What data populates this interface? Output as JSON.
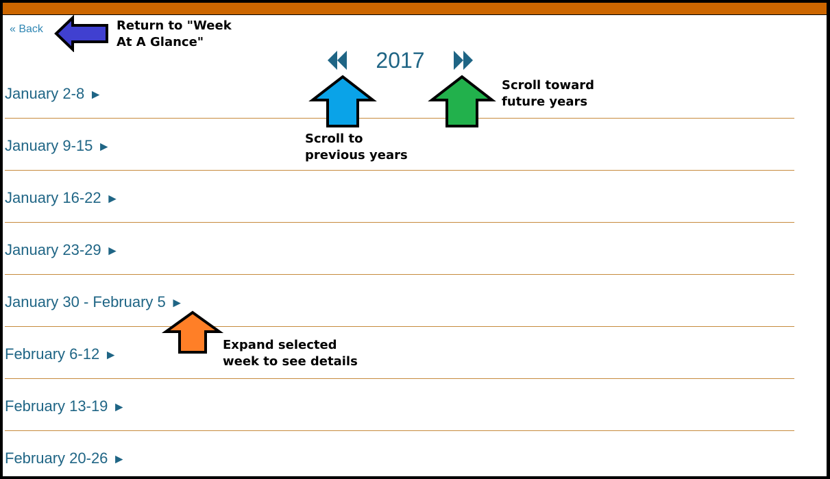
{
  "header": {
    "back_label": "« Back",
    "year": "2017"
  },
  "weeks": [
    {
      "label": "January 2-8"
    },
    {
      "label": "January 9-15"
    },
    {
      "label": "January 16-22"
    },
    {
      "label": "January 23-29"
    },
    {
      "label": "January 30 - February 5"
    },
    {
      "label": "February 6-12"
    },
    {
      "label": "February 13-19"
    },
    {
      "label": "February 20-26"
    }
  ],
  "expand_glyph": "►",
  "annotations": {
    "back_line1": "Return to \"Week",
    "back_line2": "At A Glance\"",
    "prev_line1": "Scroll to",
    "prev_line2": "previous years",
    "next_line1": "Scroll toward",
    "next_line2": "future years",
    "expand_line1": "Expand selected",
    "expand_line2": "week to see details"
  },
  "colors": {
    "top_bar": "#cc6600",
    "link": "#1f6585",
    "divider": "#c68a3c",
    "arrow_back": "#4040d0",
    "arrow_prev": "#0aa3e8",
    "arrow_next": "#22b14c",
    "arrow_expand": "#ff7f27"
  }
}
